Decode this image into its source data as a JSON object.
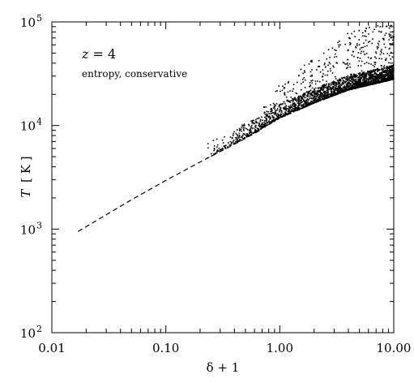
{
  "chart_data": {
    "type": "scatter",
    "title": "",
    "xlabel": "δ + 1",
    "ylabel_symbol": "T",
    "ylabel_unit": "[ K ]",
    "xscale": "log",
    "yscale": "log",
    "xlim": [
      0.01,
      10.0
    ],
    "ylim": [
      100,
      100000
    ],
    "grid": false,
    "x_tick_labels": [
      {
        "value": 0.01,
        "label": "0.01"
      },
      {
        "value": 0.1,
        "label": "0.10"
      },
      {
        "value": 1.0,
        "label": "1.00"
      },
      {
        "value": 10.0,
        "label": "10.00"
      }
    ],
    "y_tick_labels": [
      {
        "value": 100,
        "base": "10",
        "exp": "2"
      },
      {
        "value": 1000,
        "base": "10",
        "exp": "3"
      },
      {
        "value": 10000,
        "base": "10",
        "exp": "4"
      },
      {
        "value": 100000,
        "base": "10",
        "exp": "5"
      }
    ],
    "annotations": {
      "redshift_var": "z",
      "redshift_rest": " = 4",
      "scheme": "entropy, conservative"
    },
    "series": [
      {
        "style": "dashed",
        "points": [
          [
            0.017,
            950
          ],
          [
            0.05,
            1920
          ],
          [
            0.1,
            2950
          ],
          [
            0.2,
            4450
          ],
          [
            0.4,
            6600
          ],
          [
            0.7,
            9200
          ]
        ]
      },
      {
        "style": "points",
        "density": "dense",
        "lower_envelope": [
          [
            0.2,
            4450
          ],
          [
            0.5,
            7600
          ],
          [
            1.0,
            11800
          ],
          [
            2.0,
            16500
          ],
          [
            4.0,
            22000
          ],
          [
            10.0,
            28000
          ]
        ],
        "upper_extent": [
          [
            0.5,
            8500
          ],
          [
            1.0,
            25000
          ],
          [
            2.0,
            45000
          ],
          [
            4.0,
            80000
          ],
          [
            10.0,
            100000
          ]
        ],
        "x_range": [
          0.2,
          10.0
        ]
      }
    ]
  }
}
